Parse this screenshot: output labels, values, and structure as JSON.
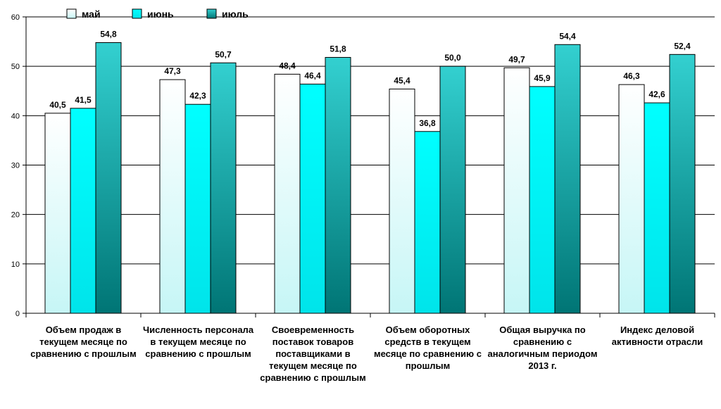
{
  "chart_data": {
    "type": "bar",
    "categories": [
      "Объем продаж в текущем месяце по сравнению с прошлым",
      "Численность персонала в текущем месяце по сравнению с прошлым",
      "Своевременность поставок товаров поставщиками в текущем месяце по сравнению с прошлым",
      "Объем оборотных средств в текущем месяце по сравнению с прошлым",
      "Общая выручка по сравнению с аналогичным периодом 2013 г.",
      "Индекс деловой активности отрасли"
    ],
    "series": [
      {
        "name": "май",
        "values": [
          40.5,
          47.3,
          48.4,
          45.4,
          49.7,
          46.3
        ],
        "value_labels": [
          "40,5",
          "47,3",
          "48,4",
          "45,4",
          "49,7",
          "46,3"
        ]
      },
      {
        "name": "июнь",
        "values": [
          41.5,
          42.3,
          46.4,
          36.8,
          45.9,
          42.6
        ],
        "value_labels": [
          "41,5",
          "42,3",
          "46,4",
          "36,8",
          "45,9",
          "42,6"
        ]
      },
      {
        "name": "июль",
        "values": [
          54.8,
          50.7,
          51.8,
          50.0,
          54.4,
          52.4
        ],
        "value_labels": [
          "54,8",
          "50,7",
          "51,8",
          "50,0",
          "54,4",
          "52,4"
        ]
      }
    ],
    "ylim": [
      0,
      60
    ],
    "yticks": [
      0,
      10,
      20,
      30,
      40,
      50,
      60
    ],
    "ytick_labels": [
      "0",
      "10",
      "20",
      "30",
      "40",
      "50",
      "60"
    ],
    "grid": true,
    "legend_position": "top-left",
    "colors": {
      "май": {
        "top": "#ffffff",
        "bottom": "#c6f6f6"
      },
      "июнь": {
        "top": "#00ffff",
        "bottom": "#00e4ea"
      },
      "июль": {
        "top": "#33d0d0",
        "bottom": "#007575"
      }
    }
  }
}
